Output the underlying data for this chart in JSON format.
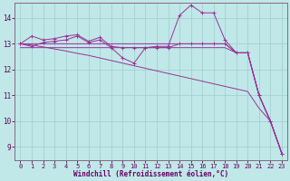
{
  "xlabel": "Windchill (Refroidissement éolien,°C)",
  "background_color": "#c0e8e8",
  "grid_color": "#a0cccc",
  "line_color": "#993399",
  "spine_color": "#886688",
  "xlim": [
    -0.5,
    23.5
  ],
  "ylim": [
    8.5,
    14.6
  ],
  "yticks": [
    9,
    10,
    11,
    12,
    13,
    14
  ],
  "xticks": [
    0,
    1,
    2,
    3,
    4,
    5,
    6,
    7,
    8,
    9,
    10,
    11,
    12,
    13,
    14,
    15,
    16,
    17,
    18,
    19,
    20,
    21,
    22,
    23
  ],
  "line1_y": [
    13.0,
    13.3,
    13.15,
    13.2,
    13.3,
    13.35,
    13.1,
    13.25,
    12.9,
    12.85,
    12.85,
    12.85,
    12.9,
    12.9,
    14.1,
    14.5,
    14.2,
    14.2,
    13.15,
    12.65,
    12.65,
    11.0,
    10.0,
    8.75
  ],
  "line2_y": [
    13.0,
    12.9,
    13.05,
    13.1,
    13.15,
    13.3,
    13.05,
    13.15,
    12.85,
    12.45,
    12.25,
    12.85,
    12.85,
    12.85,
    13.0,
    13.0,
    13.0,
    13.0,
    13.0,
    12.65,
    12.65,
    11.0,
    10.0,
    8.75
  ],
  "line3_y": [
    13.0,
    13.0,
    13.0,
    13.0,
    13.0,
    13.0,
    13.0,
    13.0,
    13.0,
    13.0,
    13.0,
    13.0,
    13.0,
    13.0,
    13.0,
    13.0,
    13.0,
    13.0,
    13.0,
    12.65,
    12.65,
    11.0,
    10.0,
    8.75
  ],
  "line4_y": [
    12.85,
    12.85,
    12.85,
    12.85,
    12.85,
    12.85,
    12.85,
    12.85,
    12.85,
    12.85,
    12.85,
    12.85,
    12.85,
    12.85,
    12.85,
    12.85,
    12.85,
    12.85,
    12.85,
    12.65,
    12.65,
    11.0,
    10.0,
    8.75
  ],
  "line5_y": [
    13.0,
    12.95,
    12.88,
    12.8,
    12.72,
    12.63,
    12.55,
    12.45,
    12.35,
    12.25,
    12.15,
    12.05,
    11.95,
    11.85,
    11.75,
    11.65,
    11.55,
    11.45,
    11.35,
    11.25,
    11.15,
    10.5,
    10.0,
    8.75
  ]
}
